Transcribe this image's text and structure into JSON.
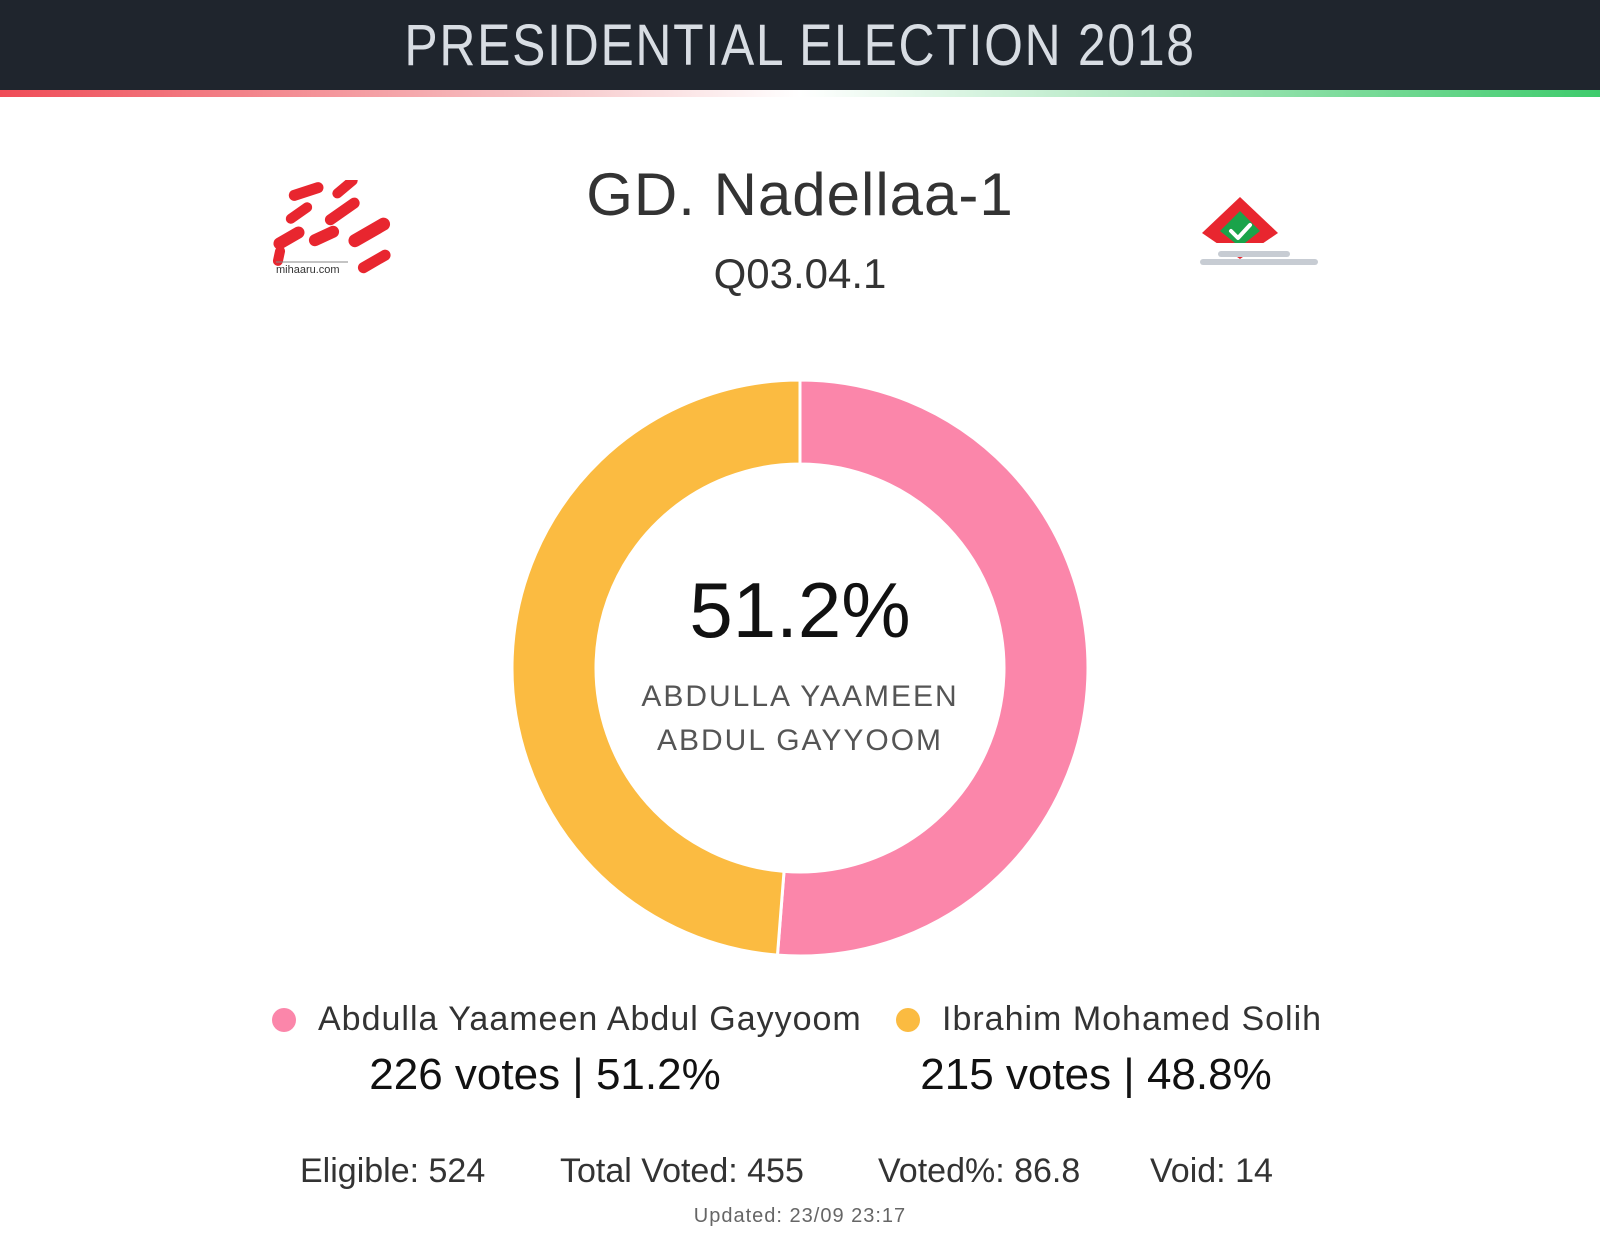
{
  "header": {
    "title": "PRESIDENTIAL ELECTION 2018"
  },
  "location": {
    "name": "GD. Nadellaa-1",
    "code": "Q03.04.1"
  },
  "logos": {
    "left_text": "mihaaru.com",
    "left_icon": "mihaaru-logo",
    "right_icon": "ballot-box-check-icon"
  },
  "colors": {
    "header_bg": "#1f252d",
    "candidate_1": "#fb86aa",
    "candidate_2": "#fbbb41",
    "ballot_red": "#e8262f",
    "ballot_green": "#1aa34a"
  },
  "center": {
    "percent": "51.2%",
    "name_line1": "ABDULLA YAAMEEN",
    "name_line2": "ABDUL GAYYOOM"
  },
  "legend": [
    {
      "name": "Abdulla Yaameen Abdul Gayyoom",
      "votes_text": "226 votes | 51.2%"
    },
    {
      "name": "Ibrahim Mohamed Solih",
      "votes_text": "215 votes | 48.8%"
    }
  ],
  "stats": {
    "eligible": "Eligible: 524",
    "total_voted": "Total Voted: 455",
    "voted_pct": "Voted%: 86.8",
    "void": "Void: 14"
  },
  "updated": "Updated:  23/09 23:17",
  "chart_data": {
    "type": "pie",
    "donut": true,
    "categories": [
      "Abdulla Yaameen Abdul Gayyoom",
      "Ibrahim Mohamed Solih"
    ],
    "values": [
      226,
      215
    ],
    "percentages": [
      51.2,
      48.8
    ],
    "colors": [
      "#fb86aa",
      "#fbbb41"
    ],
    "start_angle_deg": 0,
    "direction": "clockwise",
    "title": "GD. Nadellaa-1",
    "subtitle": "Q03.04.1"
  }
}
